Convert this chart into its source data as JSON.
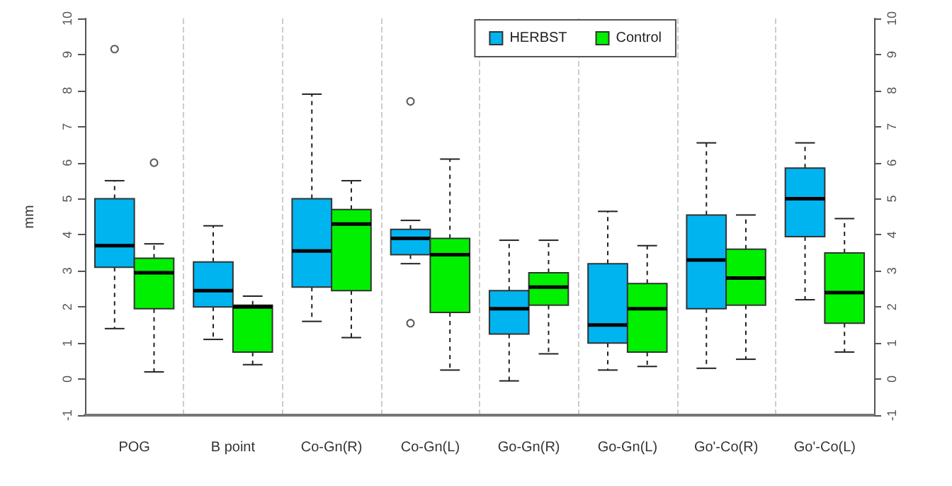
{
  "chart_data": {
    "type": "box",
    "ylabel": "mm",
    "categories": [
      "POG",
      "B point",
      "Co-Gn(R)",
      "Co-Gn(L)",
      "Go-Gn(R)",
      "Go-Gn(L)",
      "Go'-Co(R)",
      "Go'-Co(L)"
    ],
    "series": [
      {
        "name": "HERBST",
        "color": "#00b4f0",
        "boxes": [
          {
            "low": 1.4,
            "q1": 3.1,
            "median": 3.7,
            "q3": 5.0,
            "high": 5.5,
            "outliers": [
              9.15
            ]
          },
          {
            "low": 1.1,
            "q1": 2.0,
            "median": 2.45,
            "q3": 3.25,
            "high": 4.25
          },
          {
            "low": 1.6,
            "q1": 2.55,
            "median": 3.55,
            "q3": 5.0,
            "high": 7.9
          },
          {
            "low": 3.2,
            "q1": 3.45,
            "median": 3.9,
            "q3": 4.15,
            "high": 4.4,
            "outliers": [
              7.7,
              1.55
            ]
          },
          {
            "low": -0.05,
            "q1": 1.25,
            "median": 1.95,
            "q3": 2.45,
            "high": 3.85
          },
          {
            "low": 0.25,
            "q1": 1.0,
            "median": 1.5,
            "q3": 3.2,
            "high": 4.65
          },
          {
            "low": 0.3,
            "q1": 1.95,
            "median": 3.3,
            "q3": 4.55,
            "high": 6.55
          },
          {
            "low": 2.2,
            "q1": 3.95,
            "median": 5.0,
            "q3": 5.85,
            "high": 6.55
          }
        ]
      },
      {
        "name": "Control",
        "color": "#00f000",
        "boxes": [
          {
            "low": 0.2,
            "q1": 1.95,
            "median": 2.95,
            "q3": 3.35,
            "high": 3.75,
            "outliers": [
              6.0
            ]
          },
          {
            "low": 0.4,
            "q1": 0.75,
            "median": 2.0,
            "q3": 2.05,
            "high": 2.3
          },
          {
            "low": 1.15,
            "q1": 2.45,
            "median": 4.3,
            "q3": 4.7,
            "high": 5.5
          },
          {
            "low": 0.25,
            "q1": 1.85,
            "median": 3.45,
            "q3": 3.9,
            "high": 6.1
          },
          {
            "low": 0.7,
            "q1": 2.05,
            "median": 2.55,
            "q3": 2.95,
            "high": 3.85
          },
          {
            "low": 0.35,
            "q1": 0.75,
            "median": 1.95,
            "q3": 2.65,
            "high": 3.7
          },
          {
            "low": 0.55,
            "q1": 2.05,
            "median": 2.8,
            "q3": 3.6,
            "high": 4.55
          },
          {
            "low": 0.75,
            "q1": 1.55,
            "median": 2.4,
            "q3": 3.5,
            "high": 4.45
          }
        ]
      }
    ],
    "ylim": [
      -1,
      10
    ],
    "yticks": [
      -1,
      0,
      1,
      2,
      3,
      4,
      5,
      6,
      7,
      8,
      9,
      10
    ],
    "y2lim": [
      -1,
      10
    ],
    "y2ticks": [
      -1,
      0,
      1,
      2,
      3,
      4,
      5,
      6,
      7,
      8,
      9,
      10
    ],
    "grid": "x",
    "legend": "top right"
  }
}
